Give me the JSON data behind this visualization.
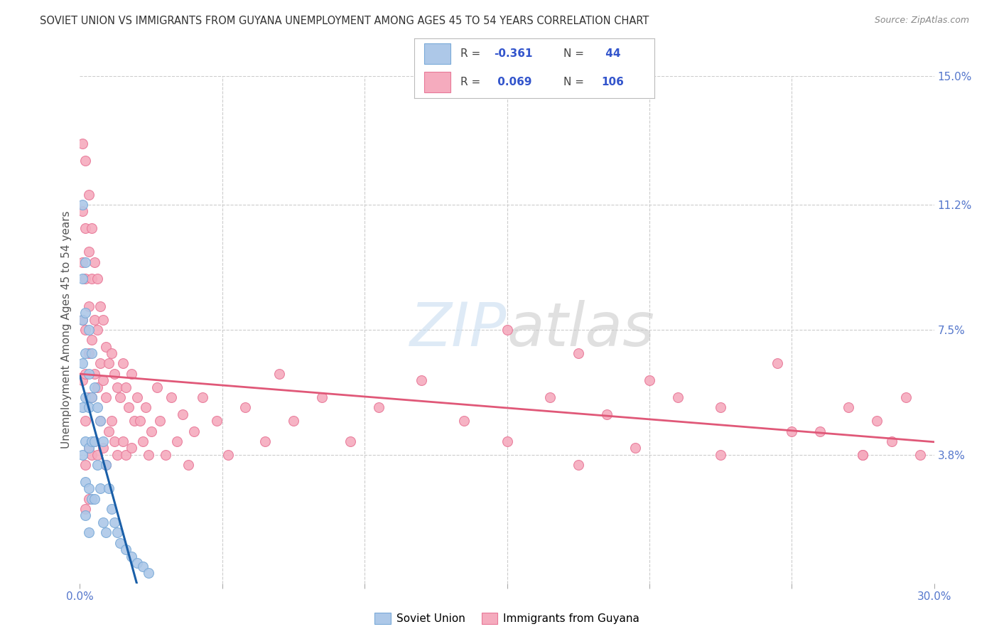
{
  "title": "SOVIET UNION VS IMMIGRANTS FROM GUYANA UNEMPLOYMENT AMONG AGES 45 TO 54 YEARS CORRELATION CHART",
  "source": "Source: ZipAtlas.com",
  "ylabel": "Unemployment Among Ages 45 to 54 years",
  "xlim": [
    0.0,
    0.3
  ],
  "ylim": [
    0.0,
    0.15
  ],
  "yticks_right": [
    0.0,
    0.038,
    0.075,
    0.112,
    0.15
  ],
  "yticklabels_right": [
    "",
    "3.8%",
    "7.5%",
    "11.2%",
    "15.0%"
  ],
  "legend_label1": "Soviet Union",
  "legend_label2": "Immigrants from Guyana",
  "soviet_color": "#adc8e8",
  "guyana_color": "#f5abbe",
  "soviet_edge": "#7aaad8",
  "guyana_edge": "#e87898",
  "line_soviet_color": "#1a5fa8",
  "line_guyana_color": "#e05878",
  "background_color": "#ffffff",
  "watermark_zip": "ZIP",
  "watermark_atlas": "atlas",
  "grid_color": "#cccccc",
  "title_color": "#333333",
  "source_color": "#888888",
  "tick_color": "#5577cc",
  "ylabel_color": "#555555",
  "r1_val": "-0.361",
  "r2_val": "0.069",
  "n1_val": "44",
  "n2_val": "106",
  "soviet_x": [
    0.001,
    0.001,
    0.001,
    0.001,
    0.001,
    0.001,
    0.002,
    0.002,
    0.002,
    0.002,
    0.002,
    0.002,
    0.002,
    0.003,
    0.003,
    0.003,
    0.003,
    0.003,
    0.003,
    0.004,
    0.004,
    0.004,
    0.004,
    0.005,
    0.005,
    0.005,
    0.006,
    0.006,
    0.007,
    0.007,
    0.008,
    0.008,
    0.009,
    0.009,
    0.01,
    0.011,
    0.012,
    0.013,
    0.014,
    0.016,
    0.018,
    0.02,
    0.022,
    0.024
  ],
  "soviet_y": [
    0.112,
    0.09,
    0.078,
    0.065,
    0.052,
    0.038,
    0.095,
    0.08,
    0.068,
    0.055,
    0.042,
    0.03,
    0.02,
    0.075,
    0.062,
    0.052,
    0.04,
    0.028,
    0.015,
    0.068,
    0.055,
    0.042,
    0.025,
    0.058,
    0.042,
    0.025,
    0.052,
    0.035,
    0.048,
    0.028,
    0.042,
    0.018,
    0.035,
    0.015,
    0.028,
    0.022,
    0.018,
    0.015,
    0.012,
    0.01,
    0.008,
    0.006,
    0.005,
    0.003
  ],
  "guyana_x": [
    0.001,
    0.001,
    0.001,
    0.001,
    0.001,
    0.002,
    0.002,
    0.002,
    0.002,
    0.002,
    0.002,
    0.002,
    0.002,
    0.003,
    0.003,
    0.003,
    0.003,
    0.003,
    0.003,
    0.003,
    0.004,
    0.004,
    0.004,
    0.004,
    0.004,
    0.005,
    0.005,
    0.005,
    0.005,
    0.006,
    0.006,
    0.006,
    0.006,
    0.007,
    0.007,
    0.007,
    0.008,
    0.008,
    0.008,
    0.009,
    0.009,
    0.009,
    0.01,
    0.01,
    0.011,
    0.011,
    0.012,
    0.012,
    0.013,
    0.013,
    0.014,
    0.015,
    0.015,
    0.016,
    0.016,
    0.017,
    0.018,
    0.018,
    0.019,
    0.02,
    0.021,
    0.022,
    0.023,
    0.024,
    0.025,
    0.027,
    0.028,
    0.03,
    0.032,
    0.034,
    0.036,
    0.038,
    0.04,
    0.043,
    0.048,
    0.052,
    0.058,
    0.065,
    0.07,
    0.075,
    0.085,
    0.095,
    0.105,
    0.12,
    0.135,
    0.15,
    0.165,
    0.175,
    0.185,
    0.195,
    0.21,
    0.225,
    0.245,
    0.26,
    0.27,
    0.275,
    0.28,
    0.285,
    0.29,
    0.295,
    0.15,
    0.175,
    0.2,
    0.225,
    0.25,
    0.275
  ],
  "guyana_y": [
    0.13,
    0.11,
    0.095,
    0.078,
    0.06,
    0.125,
    0.105,
    0.09,
    0.075,
    0.062,
    0.048,
    0.035,
    0.022,
    0.115,
    0.098,
    0.082,
    0.068,
    0.055,
    0.04,
    0.025,
    0.105,
    0.09,
    0.072,
    0.055,
    0.038,
    0.095,
    0.078,
    0.062,
    0.042,
    0.09,
    0.075,
    0.058,
    0.038,
    0.082,
    0.065,
    0.048,
    0.078,
    0.06,
    0.04,
    0.07,
    0.055,
    0.035,
    0.065,
    0.045,
    0.068,
    0.048,
    0.062,
    0.042,
    0.058,
    0.038,
    0.055,
    0.065,
    0.042,
    0.058,
    0.038,
    0.052,
    0.062,
    0.04,
    0.048,
    0.055,
    0.048,
    0.042,
    0.052,
    0.038,
    0.045,
    0.058,
    0.048,
    0.038,
    0.055,
    0.042,
    0.05,
    0.035,
    0.045,
    0.055,
    0.048,
    0.038,
    0.052,
    0.042,
    0.062,
    0.048,
    0.055,
    0.042,
    0.052,
    0.06,
    0.048,
    0.042,
    0.055,
    0.035,
    0.05,
    0.04,
    0.055,
    0.038,
    0.065,
    0.045,
    0.052,
    0.038,
    0.048,
    0.042,
    0.055,
    0.038,
    0.075,
    0.068,
    0.06,
    0.052,
    0.045,
    0.038
  ]
}
